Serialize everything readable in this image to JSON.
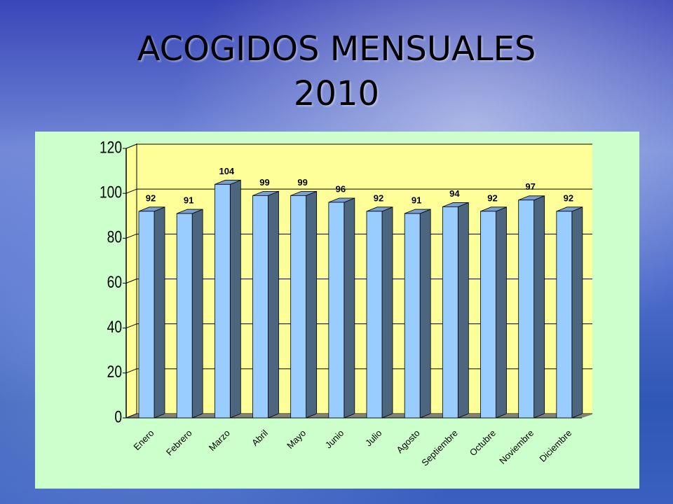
{
  "chart_data": {
    "type": "bar3d",
    "title": "ACOGIDOS MENSUALES 2010",
    "categories": [
      "Enero",
      "Febrero",
      "Marzo",
      "Abril",
      "Mayo",
      "Junio",
      "Julio",
      "Agosto",
      "Septiembre",
      "Octubre",
      "Noviembre",
      "Diciembre"
    ],
    "values": [
      92,
      91,
      104,
      99,
      99,
      96,
      92,
      91,
      94,
      92,
      97,
      92
    ],
    "color": "#99ccff",
    "ylim": [
      0,
      120
    ],
    "yticks": [
      0,
      20,
      40,
      60,
      80,
      100,
      120
    ],
    "grid": true
  }
}
